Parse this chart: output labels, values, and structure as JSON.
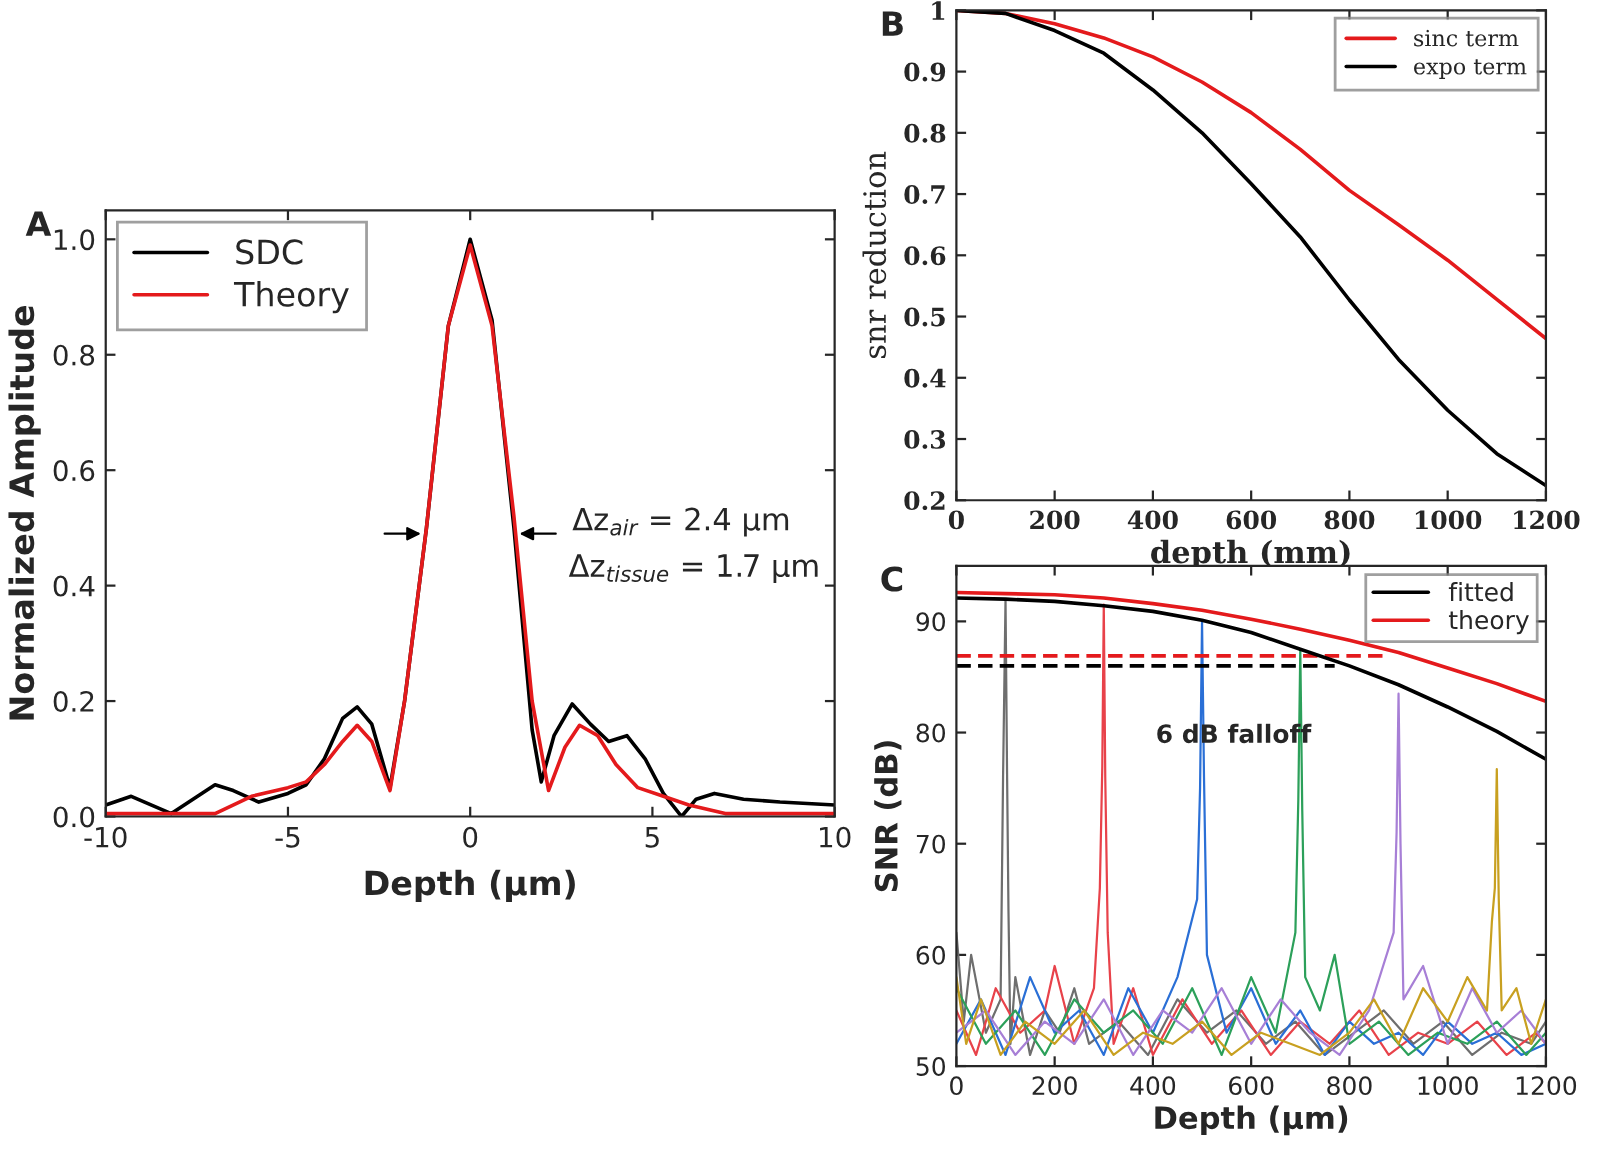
{
  "chart_data": [
    {
      "type": "line",
      "title": "A",
      "xlabel": "Depth (μm)",
      "ylabel": "Normalized Amplitude",
      "xlim": [
        -10,
        10
      ],
      "ylim": [
        0,
        1.05
      ],
      "xticks": [
        -10,
        -5,
        0,
        5,
        10
      ],
      "yticks": [
        {
          "value": 0,
          "label": "0.0"
        },
        0.2,
        0.4,
        0.6,
        0.8,
        {
          "value": 1,
          "label": "1.0"
        }
      ],
      "legend": "top left",
      "annotations": [
        {
          "text": "Δz$_{air}$ = 2.4 μm",
          "x": 1.2,
          "y": 0.49
        },
        "Δz$_{tissue}$ = 1.7 μm"
      ],
      "series": [
        {
          "name": "SDC",
          "color": "#000000",
          "x": [
            -10,
            -9.3,
            -8.2,
            -7,
            -6.5,
            -5.8,
            -5,
            -4.5,
            -4,
            -3.5,
            -3.1,
            -2.7,
            -2.2,
            -1.8,
            -1.2,
            -0.6,
            0,
            0.6,
            1.2,
            1.7,
            1.95,
            2.3,
            2.8,
            3.3,
            3.8,
            4.3,
            4.8,
            5.3,
            5.8,
            6.2,
            6.7,
            7.5,
            8.5,
            10
          ],
          "values": [
            0.02,
            0.035,
            0.005,
            0.055,
            0.045,
            0.025,
            0.04,
            0.055,
            0.1,
            0.17,
            0.19,
            0.16,
            0.05,
            0.2,
            0.5,
            0.85,
            1.0,
            0.86,
            0.5,
            0.15,
            0.06,
            0.14,
            0.195,
            0.16,
            0.13,
            0.14,
            0.1,
            0.04,
            0.0,
            0.03,
            0.04,
            0.03,
            0.025,
            0.02
          ]
        },
        {
          "name": "Theory",
          "color": "#e41a1c",
          "x": [
            -10,
            -7,
            -6,
            -5,
            -4.5,
            -4,
            -3.5,
            -3.1,
            -2.7,
            -2.2,
            -1.8,
            -1.2,
            -0.6,
            0,
            0.6,
            1.2,
            1.7,
            2.15,
            2.6,
            3.0,
            3.5,
            4,
            4.6,
            5.3,
            6,
            7,
            10
          ],
          "values": [
            0.005,
            0.005,
            0.035,
            0.05,
            0.06,
            0.09,
            0.13,
            0.158,
            0.13,
            0.045,
            0.2,
            0.5,
            0.85,
            0.99,
            0.85,
            0.52,
            0.2,
            0.045,
            0.12,
            0.158,
            0.14,
            0.09,
            0.05,
            0.035,
            0.02,
            0.005,
            0.005
          ]
        }
      ]
    },
    {
      "type": "line",
      "title": "B",
      "xlabel": "depth (mm)",
      "ylabel": "snr reduction",
      "xlim": [
        0,
        1200
      ],
      "ylim": [
        0.2,
        1
      ],
      "xticks": [
        0,
        200,
        400,
        600,
        800,
        1000,
        1200
      ],
      "yticks": [
        0.2,
        0.3,
        0.4,
        0.5,
        0.6,
        0.7,
        0.8,
        0.9,
        1
      ],
      "legend": "top right",
      "series": [
        {
          "name": "sinc term",
          "color": "#e41a1c",
          "x": [
            0,
            100,
            200,
            300,
            400,
            500,
            600,
            700,
            800,
            900,
            1000,
            1100,
            1200
          ],
          "values": [
            1,
            0.995,
            0.978,
            0.955,
            0.924,
            0.883,
            0.833,
            0.773,
            0.706,
            0.65,
            0.592,
            0.528,
            0.464
          ]
        },
        {
          "name": "expo term",
          "color": "#000000",
          "x": [
            0,
            100,
            200,
            300,
            400,
            500,
            600,
            700,
            800,
            900,
            1000,
            1100,
            1200
          ],
          "values": [
            1,
            0.995,
            0.967,
            0.93,
            0.87,
            0.8,
            0.717,
            0.63,
            0.527,
            0.43,
            0.347,
            0.276,
            0.224
          ]
        }
      ]
    },
    {
      "type": "line",
      "title": "C",
      "xlabel": "Depth (μm)",
      "ylabel": "SNR (dB)",
      "xlim": [
        0,
        1200
      ],
      "ylim": [
        50,
        95
      ],
      "xticks": [
        0,
        200,
        400,
        600,
        800,
        1000,
        1200
      ],
      "yticks": [
        50,
        60,
        70,
        80,
        90
      ],
      "legend": "top right",
      "annotations": [
        "6 dB falloff"
      ],
      "series": [
        {
          "color": "#6e6e6e",
          "x": [
            0,
            15,
            30,
            60,
            90,
            95,
            100,
            103,
            106,
            110,
            120,
            150,
            180,
            210,
            240,
            270,
            330,
            390,
            450,
            510,
            570,
            630,
            690,
            750,
            810,
            870,
            930,
            990,
            1050,
            1110,
            1170,
            1200
          ],
          "values": [
            62,
            54,
            60,
            53,
            56,
            76,
            92,
            77,
            64,
            52,
            58,
            51,
            55,
            53,
            57,
            52,
            54,
            51,
            56,
            53,
            55,
            52,
            54,
            51,
            53,
            55,
            52,
            54,
            51,
            53,
            52,
            54
          ]
        },
        {
          "color": "#e8424a",
          "x": [
            0,
            40,
            80,
            130,
            180,
            200,
            240,
            280,
            292,
            297,
            300,
            303,
            308,
            320,
            360,
            400,
            460,
            520,
            580,
            640,
            700,
            760,
            820,
            880,
            940,
            1000,
            1060,
            1120,
            1180,
            1200
          ],
          "values": [
            55,
            51,
            57,
            53,
            55,
            59,
            52,
            57,
            66,
            77,
            91.5,
            76,
            62,
            52,
            57,
            51,
            56,
            52,
            55,
            51,
            54,
            52,
            55,
            51,
            53,
            52,
            54,
            51,
            53,
            52
          ]
        },
        {
          "color": "#2a6fd6",
          "x": [
            0,
            50,
            100,
            150,
            200,
            250,
            300,
            350,
            400,
            450,
            490,
            496,
            500,
            504,
            510,
            550,
            600,
            650,
            700,
            750,
            800,
            850,
            900,
            950,
            1000,
            1050,
            1100,
            1150,
            1200
          ],
          "values": [
            52,
            56,
            51,
            58,
            53,
            55,
            51,
            57,
            53,
            58,
            65,
            75,
            90,
            76,
            60,
            53,
            57,
            52,
            55,
            51,
            54,
            52,
            53,
            51,
            54,
            52,
            53,
            51,
            52
          ]
        },
        {
          "color": "#2ca05a",
          "x": [
            0,
            60,
            120,
            180,
            240,
            300,
            360,
            420,
            480,
            540,
            600,
            650,
            690,
            696,
            700,
            704,
            710,
            740,
            770,
            800,
            860,
            920,
            980,
            1040,
            1100,
            1160,
            1200
          ],
          "values": [
            57,
            52,
            55,
            51,
            56,
            53,
            55,
            52,
            57,
            51,
            58,
            53,
            62,
            74,
            87.5,
            73,
            58,
            55,
            60,
            52,
            54,
            51,
            53,
            52,
            54,
            51,
            53
          ]
        },
        {
          "color": "#a77fd6",
          "x": [
            0,
            60,
            120,
            180,
            240,
            300,
            360,
            420,
            480,
            540,
            600,
            660,
            720,
            780,
            840,
            890,
            896,
            900,
            904,
            910,
            950,
            1000,
            1050,
            1100,
            1150,
            1200
          ],
          "values": [
            53,
            55,
            51,
            54,
            52,
            56,
            51,
            55,
            53,
            57,
            52,
            56,
            53,
            51,
            55,
            62,
            71,
            83.5,
            70,
            56,
            59,
            52,
            57,
            53,
            55,
            52
          ]
        },
        {
          "color": "#c8a020",
          "x": [
            0,
            20,
            50,
            90,
            140,
            200,
            260,
            320,
            380,
            440,
            500,
            560,
            620,
            680,
            740,
            800,
            850,
            900,
            950,
            1000,
            1040,
            1080,
            1090,
            1096,
            1100,
            1104,
            1110,
            1140,
            1170,
            1200
          ],
          "values": [
            58,
            52,
            56,
            51,
            54,
            52,
            55,
            51,
            53,
            52,
            54,
            51,
            53,
            52,
            51,
            53,
            56,
            52,
            57,
            54,
            58,
            55,
            63,
            66,
            76.7,
            65,
            55,
            57,
            52,
            56
          ]
        },
        {
          "color": "#e41a1c",
          "line_style": "dashed",
          "x": [
            0,
            880
          ],
          "values": [
            86.9,
            86.9
          ]
        },
        {
          "color": "#000000",
          "line_style": "dashed",
          "x": [
            0,
            770
          ],
          "values": [
            86,
            86
          ]
        },
        {
          "name": "fitted",
          "color": "#000000",
          "x": [
            0,
            100,
            200,
            300,
            400,
            500,
            600,
            700,
            800,
            900,
            1000,
            1100,
            1200
          ],
          "values": [
            92.1,
            92.0,
            91.8,
            91.4,
            90.9,
            90.1,
            89.0,
            87.5,
            86.0,
            84.3,
            82.3,
            80.1,
            77.6
          ]
        },
        {
          "name": "theory",
          "color": "#e41a1c",
          "x": [
            0,
            100,
            200,
            300,
            400,
            500,
            600,
            700,
            800,
            900,
            1000,
            1100,
            1200
          ],
          "values": [
            92.6,
            92.5,
            92.4,
            92.1,
            91.6,
            91.0,
            90.2,
            89.3,
            88.3,
            87.2,
            85.8,
            84.4,
            82.8
          ]
        }
      ]
    }
  ]
}
